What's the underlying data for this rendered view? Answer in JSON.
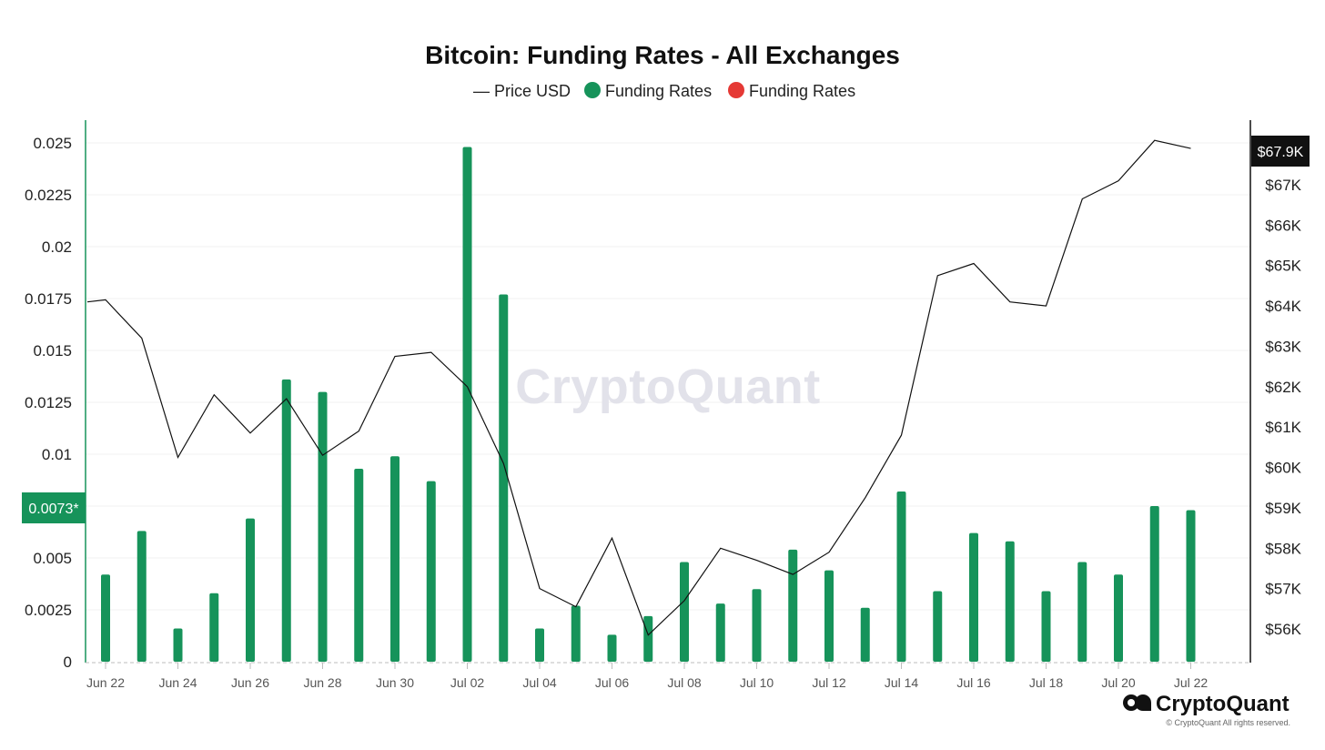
{
  "title": "Bitcoin: Funding Rates - All Exchanges",
  "legend": {
    "price_symbol": "—",
    "price_label": "Price USD",
    "funding_label_positive": "Funding Rates",
    "funding_label_negative": "Funding Rates"
  },
  "colors": {
    "funding_positive": "#16935a",
    "funding_negative": "#e53935",
    "price_line": "#111111",
    "grid": "#f0f0f0",
    "left_axis": "#16935a",
    "right_axis": "#111111",
    "badge_price_bg": "#111111",
    "badge_funding_bg": "#16935a",
    "watermark": "#e2e2ea"
  },
  "badges": {
    "price_current": "$67.9K",
    "funding_current": "0.0073*"
  },
  "watermark": "CryptoQuant",
  "brand": {
    "name": "CryptoQuant",
    "copyright": "© CryptoQuant All rights reserved."
  },
  "chart_data": {
    "type": "bar",
    "title": "Bitcoin: Funding Rates - All Exchanges",
    "xlabel": "",
    "ylabel": "",
    "categories": [
      "Jun 22",
      "Jun 23",
      "Jun 24",
      "Jun 25",
      "Jun 26",
      "Jun 27",
      "Jun 28",
      "Jun 29",
      "Jun 30",
      "Jul 01",
      "Jul 02",
      "Jul 03",
      "Jul 04",
      "Jul 05",
      "Jul 06",
      "Jul 07",
      "Jul 08",
      "Jul 09",
      "Jul 10",
      "Jul 11",
      "Jul 12",
      "Jul 13",
      "Jul 14",
      "Jul 15",
      "Jul 16",
      "Jul 17",
      "Jul 18",
      "Jul 19",
      "Jul 20",
      "Jul 21",
      "Jul 22"
    ],
    "x_tick_labels": [
      "Jun 22",
      "Jun 24",
      "Jun 26",
      "Jun 28",
      "Jun 30",
      "Jul 02",
      "Jul 04",
      "Jul 06",
      "Jul 08",
      "Jul 10",
      "Jul 12",
      "Jul 14",
      "Jul 16",
      "Jul 18",
      "Jul 20",
      "Jul 22"
    ],
    "series": [
      {
        "name": "Funding Rates",
        "type": "bar",
        "axis": "left",
        "values": [
          0.0042,
          0.0063,
          0.0016,
          0.0033,
          0.0069,
          0.0136,
          0.013,
          0.0093,
          0.0099,
          0.0087,
          0.0248,
          0.0177,
          0.0016,
          0.0027,
          0.0013,
          0.0022,
          0.0048,
          0.0028,
          0.0035,
          0.0054,
          0.0044,
          0.0026,
          0.0082,
          0.0034,
          0.0062,
          0.0058,
          0.0034,
          0.0048,
          0.0042,
          0.0075,
          0.0073
        ]
      },
      {
        "name": "Price USD",
        "type": "line",
        "axis": "right",
        "points": [
          {
            "x": "Jun 21.5",
            "i": -0.5,
            "y": 64100
          },
          {
            "i": 0,
            "y": 64150
          },
          {
            "i": 1,
            "y": 63200
          },
          {
            "i": 2,
            "y": 60250
          },
          {
            "i": 3,
            "y": 61800
          },
          {
            "i": 4,
            "y": 60850
          },
          {
            "i": 5,
            "y": 61700
          },
          {
            "i": 6,
            "y": 60300
          },
          {
            "i": 7,
            "y": 60900
          },
          {
            "i": 8,
            "y": 62750
          },
          {
            "i": 9,
            "y": 62850
          },
          {
            "i": 10,
            "y": 62000
          },
          {
            "i": 11,
            "y": 60100
          },
          {
            "i": 12,
            "y": 57000
          },
          {
            "i": 13,
            "y": 56550
          },
          {
            "i": 14,
            "y": 58250
          },
          {
            "i": 15,
            "y": 55850
          },
          {
            "i": 16,
            "y": 56700
          },
          {
            "i": 17,
            "y": 58000
          },
          {
            "i": 18,
            "y": 57700
          },
          {
            "i": 19,
            "y": 57350
          },
          {
            "i": 20,
            "y": 57900
          },
          {
            "i": 21,
            "y": 59250
          },
          {
            "i": 22,
            "y": 60800
          },
          {
            "i": 23,
            "y": 64750
          },
          {
            "i": 24,
            "y": 65050
          },
          {
            "i": 25,
            "y": 64100
          },
          {
            "i": 26,
            "y": 64000
          },
          {
            "i": 27,
            "y": 66650
          },
          {
            "i": 28,
            "y": 67100
          },
          {
            "i": 29,
            "y": 68100
          },
          {
            "i": 30,
            "y": 67900
          }
        ]
      }
    ],
    "left_axis": {
      "range": [
        0,
        0.025
      ],
      "ticks": [
        0,
        0.0025,
        0.005,
        0.0075,
        0.01,
        0.0125,
        0.015,
        0.0175,
        0.02,
        0.0225,
        0.025
      ],
      "tick_labels": [
        "0",
        "0.0025",
        "0.005",
        "",
        "0.01",
        "0.0125",
        "0.015",
        "0.0175",
        "0.02",
        "0.0225",
        "0.025"
      ]
    },
    "right_axis": {
      "range": [
        55100,
        68300
      ],
      "ticks": [
        56000,
        57000,
        58000,
        59000,
        60000,
        61000,
        62000,
        63000,
        64000,
        65000,
        66000,
        67000
      ],
      "tick_labels": [
        "$56K",
        "$57K",
        "$58K",
        "$59K",
        "$60K",
        "$61K",
        "$62K",
        "$63K",
        "$64K",
        "$65K",
        "$66K",
        "$67K"
      ]
    },
    "legend_position": "top-center",
    "grid": true
  }
}
